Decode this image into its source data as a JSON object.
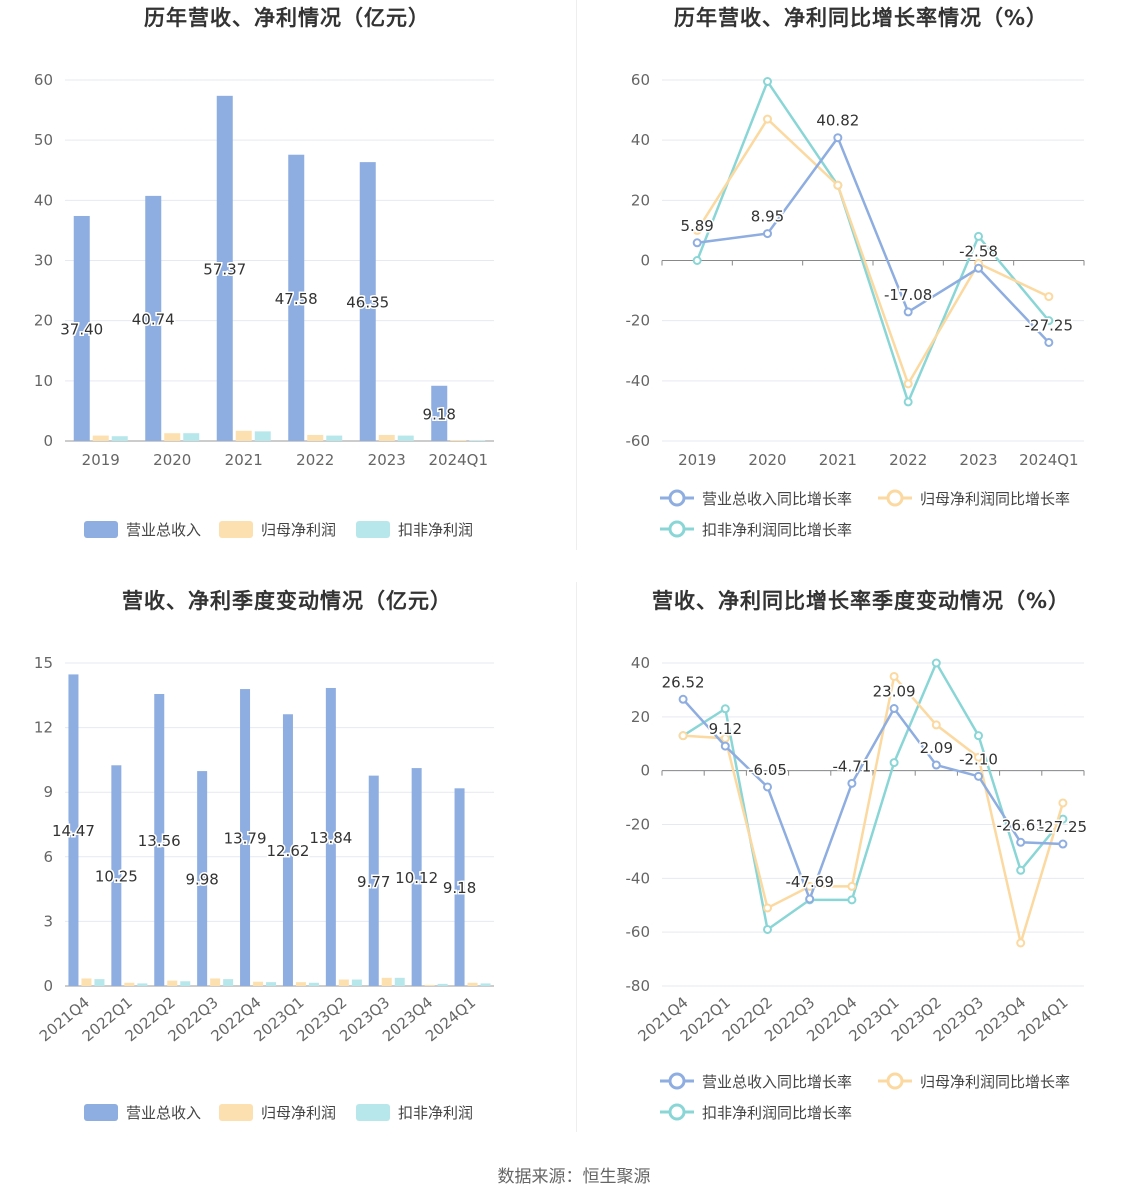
{
  "source": "数据来源：恒生聚源",
  "colors": {
    "revenue": "#8eade0",
    "net_profit": "#fde0b0",
    "deducted_profit": "#b8e7eb",
    "revenue_line": "#8eade0",
    "net_line": "#fbd9a0",
    "deducted_line": "#8ad6d6"
  },
  "chart_data": [
    {
      "type": "bar",
      "title": "历年营收、净利情况（亿元）",
      "categories": [
        "2019",
        "2020",
        "2021",
        "2022",
        "2023",
        "2024Q1"
      ],
      "ylim": [
        0,
        60
      ],
      "yticks": [
        0,
        10,
        20,
        30,
        40,
        50,
        60
      ],
      "series": [
        {
          "name": "营业总收入",
          "values": [
            37.4,
            40.74,
            57.37,
            47.58,
            46.35,
            9.18
          ],
          "labels": [
            "37.40",
            "40.74",
            "57.37",
            "47.58",
            "46.35",
            "9.18"
          ]
        },
        {
          "name": "归母净利润",
          "values": [
            0.9,
            1.3,
            1.7,
            1.0,
            1.0,
            0.15
          ]
        },
        {
          "name": "扣非净利润",
          "values": [
            0.8,
            1.3,
            1.6,
            0.9,
            0.9,
            0.12
          ]
        }
      ],
      "legend": "bottom",
      "grid": true
    },
    {
      "type": "line",
      "title": "历年营收、净利同比增长率情况（%）",
      "categories": [
        "2019",
        "2020",
        "2021",
        "2022",
        "2023",
        "2024Q1"
      ],
      "ylim": [
        -60,
        60
      ],
      "yticks": [
        -60,
        -40,
        -20,
        0,
        20,
        40,
        60
      ],
      "series": [
        {
          "name": "营业总收入同比增长率",
          "values": [
            5.89,
            8.95,
            40.82,
            -17.08,
            -2.58,
            -27.25
          ],
          "labels": [
            "5.89",
            "8.95",
            "40.82",
            "-17.08",
            "-2.58",
            "-27.25"
          ]
        },
        {
          "name": "归母净利润同比增长率",
          "values": [
            10,
            47,
            25,
            -41,
            -1,
            -12
          ]
        },
        {
          "name": "扣非净利润同比增长率",
          "values": [
            0,
            59.5,
            25,
            -47,
            8,
            -20
          ]
        }
      ],
      "legend": "bottom",
      "grid": true
    },
    {
      "type": "bar",
      "title": "营收、净利季度变动情况（亿元）",
      "categories": [
        "2021Q4",
        "2022Q1",
        "2022Q2",
        "2022Q3",
        "2022Q4",
        "2023Q1",
        "2023Q2",
        "2023Q3",
        "2023Q4",
        "2024Q1"
      ],
      "ylim": [
        0,
        15
      ],
      "yticks": [
        0,
        3,
        6,
        9,
        12,
        15
      ],
      "series": [
        {
          "name": "营业总收入",
          "values": [
            14.47,
            10.25,
            13.56,
            9.98,
            13.79,
            12.62,
            13.84,
            9.77,
            10.12,
            9.18
          ],
          "labels": [
            "14.47",
            "10.25",
            "13.56",
            "9.98",
            "13.79",
            "12.62",
            "13.84",
            "9.77",
            "10.12",
            "9.18"
          ]
        },
        {
          "name": "归母净利润",
          "values": [
            0.35,
            0.15,
            0.25,
            0.35,
            0.2,
            0.18,
            0.3,
            0.38,
            0.05,
            0.15
          ]
        },
        {
          "name": "扣非净利润",
          "values": [
            0.32,
            0.12,
            0.22,
            0.32,
            0.18,
            0.15,
            0.3,
            0.38,
            0.1,
            0.12
          ]
        }
      ],
      "legend": "bottom",
      "grid": true
    },
    {
      "type": "line",
      "title": "营收、净利同比增长率季度变动情况（%）",
      "categories": [
        "2021Q4",
        "2022Q1",
        "2022Q2",
        "2022Q3",
        "2022Q4",
        "2023Q1",
        "2023Q2",
        "2023Q3",
        "2023Q4",
        "2024Q1"
      ],
      "ylim": [
        -80,
        40
      ],
      "yticks": [
        -80,
        -60,
        -40,
        -20,
        0,
        20,
        40
      ],
      "series": [
        {
          "name": "营业总收入同比增长率",
          "values": [
            26.52,
            9.12,
            -6.05,
            -47.69,
            -4.71,
            23.09,
            2.09,
            -2.1,
            -26.61,
            -27.25
          ],
          "labels": [
            "26.52",
            "9.12",
            "-6.05",
            "-47.69",
            "-4.71",
            "23.09",
            "2.09",
            "-2.10",
            "-26.61",
            "-27.25"
          ]
        },
        {
          "name": "归母净利润同比增长率",
          "values": [
            13,
            12,
            -51,
            -43,
            -43,
            35,
            17,
            5,
            -64,
            -12
          ]
        },
        {
          "name": "扣非净利润同比增长率",
          "values": [
            13,
            23,
            -59,
            -48,
            -48,
            3,
            40,
            13,
            -37,
            -18
          ]
        }
      ],
      "legend": "bottom",
      "grid": true
    }
  ]
}
